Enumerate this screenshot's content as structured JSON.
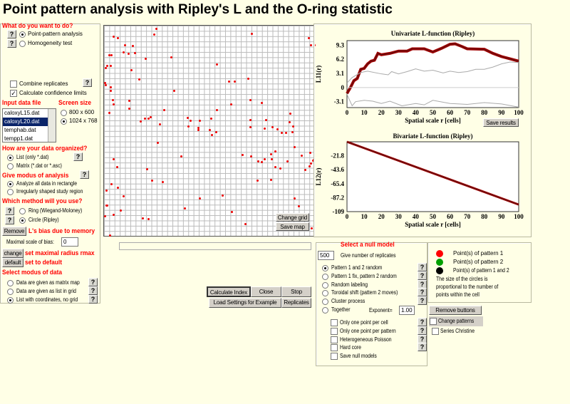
{
  "title": "Point pattern analysis with Ripley's L and the O-ring statistic",
  "left": {
    "q1": "What do you want to do?",
    "opt_ppa": "Point-pattern analysis",
    "opt_homog": "Homogeneity test",
    "combine": "Combine replicates",
    "conf": "Calculate confidence limits",
    "input_label": "Input data file",
    "screen_label": "Screen size",
    "files": [
      "caloxyL15.dat",
      "caloxyL20.dat",
      "temphab.dat",
      "tempp1.dat"
    ],
    "selected_file": "caloxyL20.dat",
    "screen": [
      "800 x 600",
      "1024 x 768"
    ],
    "q2": "How are your data organized?",
    "org_list": "List  (only *.dat)",
    "org_matrix": "Matrix (*.dat or *.asc)",
    "q3": "Give modus of analysis",
    "mod_all": "Analyze all data in rectangle",
    "mod_irr": "Irregularly shaped study region",
    "q4": "Which method will you use?",
    "ring": "Ring (Wiegand-Moloney)",
    "circle": "Circle (Ripley)",
    "remove": "Remove",
    "bias": "L's bias due to memory",
    "max_bias_label": "Maximal scale of bias:",
    "max_bias": "0",
    "change": "change",
    "change_txt": "set maximal radius rmax",
    "default": "default",
    "default_txt": "set to default",
    "q5": "Select modus of data",
    "d1": "Data are given as matrix map",
    "d2": "Data are given as list in grid",
    "d3": "List with coordinates, no grid",
    "help": "?"
  },
  "map": {
    "change_grid": "Change grid",
    "save_map": "Save map"
  },
  "buttons": {
    "calc": "Calculate Index",
    "close": "Close",
    "stop": "Stop",
    "load": "Load Settings for Example",
    "replicates": "Replicates"
  },
  "null": {
    "title": "Select a null model",
    "replicates": "500",
    "rep_label": "Give number of replicates",
    "models": [
      "Pattern 1 and 2 random",
      "Pattern 1 fix, pattern 2 random",
      "Random labeling",
      "Toroidal shift (pattern 2 moves)",
      "Cluster process",
      "Together"
    ],
    "exp_label": "Exponent=",
    "exp": "1.00",
    "checks": [
      "Only one point per cell",
      "Only one point per pattern",
      "Heterogeneous Poisson",
      "Hard core",
      "Save null models"
    ]
  },
  "legend": {
    "p1": "Point(s) of pattern 1",
    "p2": "Point(s) of pattern 2",
    "p12": "Point(s) of pattern 1 and 2",
    "note": [
      "The size of the circles is",
      "proportional to the number of",
      "points within the cell"
    ],
    "colors": {
      "p1": "#ff0000",
      "p2": "#00a000",
      "p12": "#000000"
    },
    "remove_buttons": "Remove buttons",
    "change_patterns": "Change patterns",
    "series": "Series Christine"
  },
  "save_results": "Save results",
  "chart_data": [
    {
      "type": "line",
      "title": "Univariate L-function (Ripley)",
      "xlabel": "Spatial scale r [cells]",
      "ylabel": "L11(r)",
      "xlim": [
        0,
        100
      ],
      "ylim": [
        -4.4,
        10.3
      ],
      "xticks": [
        "0",
        "10",
        "20",
        "30",
        "40",
        "50",
        "60",
        "70",
        "80",
        "90",
        "100"
      ],
      "yticks": [
        "9.3",
        "6.2",
        "3.1",
        "0",
        "-3.1"
      ],
      "series": [
        {
          "role": "observed",
          "x": [
            0,
            2,
            4,
            6,
            8,
            10,
            12,
            14,
            16,
            18,
            20,
            25,
            30,
            35,
            38,
            45,
            50,
            55,
            60,
            63,
            67,
            70,
            80,
            85,
            90,
            95,
            100
          ],
          "y": [
            -1.3,
            0,
            1.5,
            2,
            4,
            4.2,
            5.2,
            5.8,
            6,
            7.5,
            7.2,
            7.5,
            8,
            8,
            8.5,
            8.5,
            7.8,
            8.6,
            9.5,
            9.6,
            9,
            8.5,
            8.4,
            7.5,
            6.8,
            6.3,
            5.8
          ]
        },
        {
          "role": "upper",
          "x": [
            0,
            3,
            8,
            12,
            20,
            24,
            26,
            30,
            35,
            40,
            45,
            50,
            56,
            60,
            65,
            70,
            75,
            80,
            85,
            90,
            95,
            100
          ],
          "y": [
            1,
            2.2,
            3.3,
            3.6,
            3,
            2.8,
            3.5,
            3,
            3.5,
            4.1,
            3.6,
            3.8,
            3.2,
            3.6,
            3.3,
            3.5,
            4,
            4,
            4.5,
            5.2,
            5.6,
            5.5
          ]
        },
        {
          "role": "lower",
          "x": [
            0,
            3,
            5,
            10,
            15,
            20,
            25,
            32,
            40,
            45,
            50,
            60,
            70,
            80,
            90,
            100
          ],
          "y": [
            -1.5,
            -4,
            -3.1,
            -2.8,
            -3,
            -3.5,
            -3,
            -4,
            -3.5,
            -3.8,
            -2.8,
            -3.5,
            -3.7,
            -3.3,
            -3.6,
            -4.3
          ]
        }
      ]
    },
    {
      "type": "line",
      "title": "Bivariate L-function (Ripley)",
      "xlabel": "Spatial scale r [cells]",
      "ylabel": "L12(r)",
      "xlim": [
        0,
        100
      ],
      "ylim": [
        -109,
        0
      ],
      "xticks": [
        "0",
        "10",
        "20",
        "30",
        "40",
        "50",
        "60",
        "70",
        "80",
        "90",
        "100"
      ],
      "yticks": [
        "-21.8",
        "-43.6",
        "-65.4",
        "-87.2",
        "-109"
      ],
      "series": [
        {
          "role": "observed",
          "x": [
            0,
            100
          ],
          "y": [
            0,
            -98
          ]
        }
      ]
    }
  ]
}
